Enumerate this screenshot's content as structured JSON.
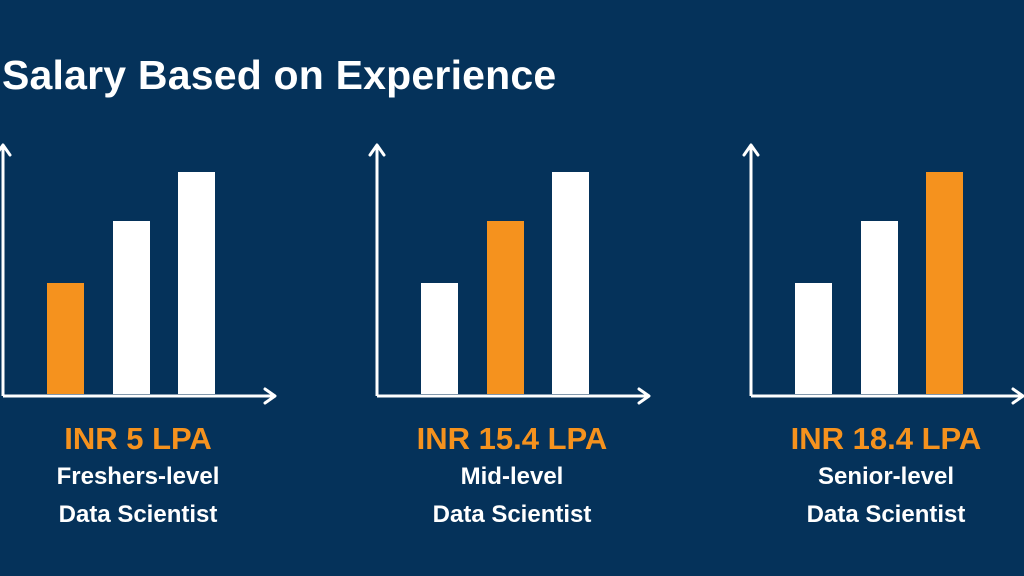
{
  "title": "Salary Based on Experience",
  "colors": {
    "background": "#05325a",
    "highlight": "#f5921e",
    "bar": "#ffffff",
    "axis": "#ffffff"
  },
  "panels": [
    {
      "salary": "INR 5 LPA",
      "level": "Freshers-level",
      "role": "Data Scientist",
      "highlight_index": 0
    },
    {
      "salary": "INR 15.4 LPA",
      "level": "Mid-level",
      "role": "Data Scientist",
      "highlight_index": 1
    },
    {
      "salary": "INR 18.4 LPA",
      "level": "Senior-level",
      "role": "Data Scientist",
      "highlight_index": 2
    }
  ],
  "chart_data": {
    "type": "bar",
    "title": "Salary Based on Experience",
    "xlabel": "",
    "ylabel": "",
    "categories": [
      "Freshers-level",
      "Mid-level",
      "Senior-level"
    ],
    "values": [
      5,
      15.4,
      18.4
    ],
    "unit": "LPA",
    "icon_bar_levels": [
      0.5,
      0.78,
      1.0
    ],
    "grid": false,
    "legend": "none"
  }
}
